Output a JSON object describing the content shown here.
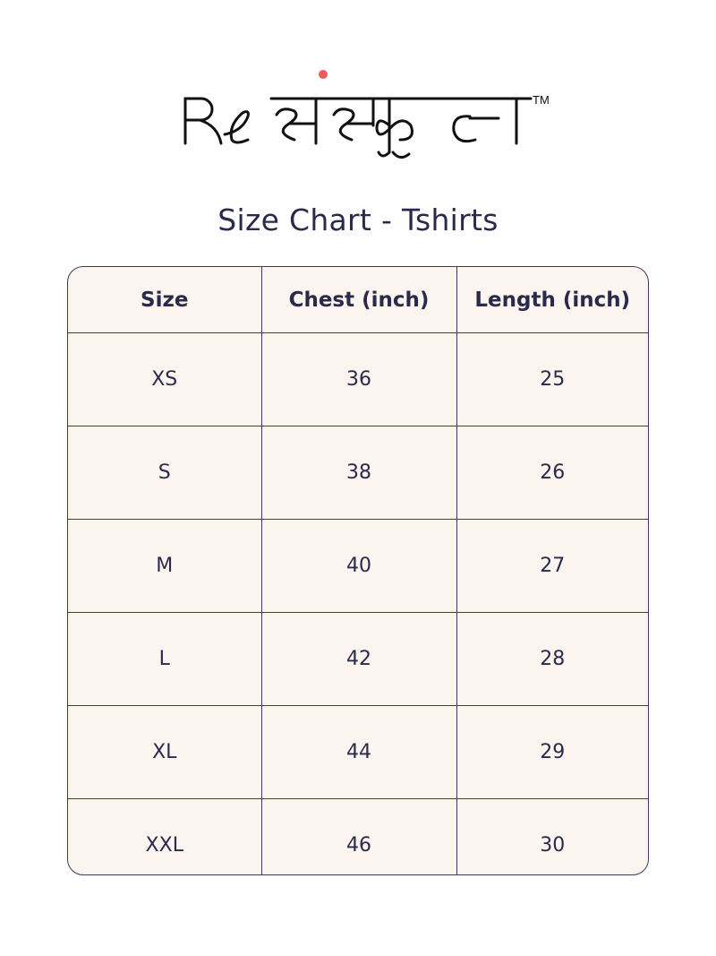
{
  "brand": {
    "logo_text": "Re संस्कृत",
    "trademark": "TM",
    "dot_color": "#ef5a5a"
  },
  "title": "Size Chart - Tshirts",
  "table": {
    "headers": [
      "Size",
      "Chest (inch)",
      "Length (inch)"
    ],
    "rows": [
      [
        "XS",
        "36",
        "25"
      ],
      [
        "S",
        "38",
        "26"
      ],
      [
        "M",
        "40",
        "27"
      ],
      [
        "L",
        "42",
        "28"
      ],
      [
        "XL",
        "44",
        "29"
      ],
      [
        "XXL",
        "46",
        "30"
      ]
    ]
  },
  "colors": {
    "text": "#2b2a4c",
    "table_bg": "#fcf5ef",
    "border": "#3d3a5c"
  }
}
